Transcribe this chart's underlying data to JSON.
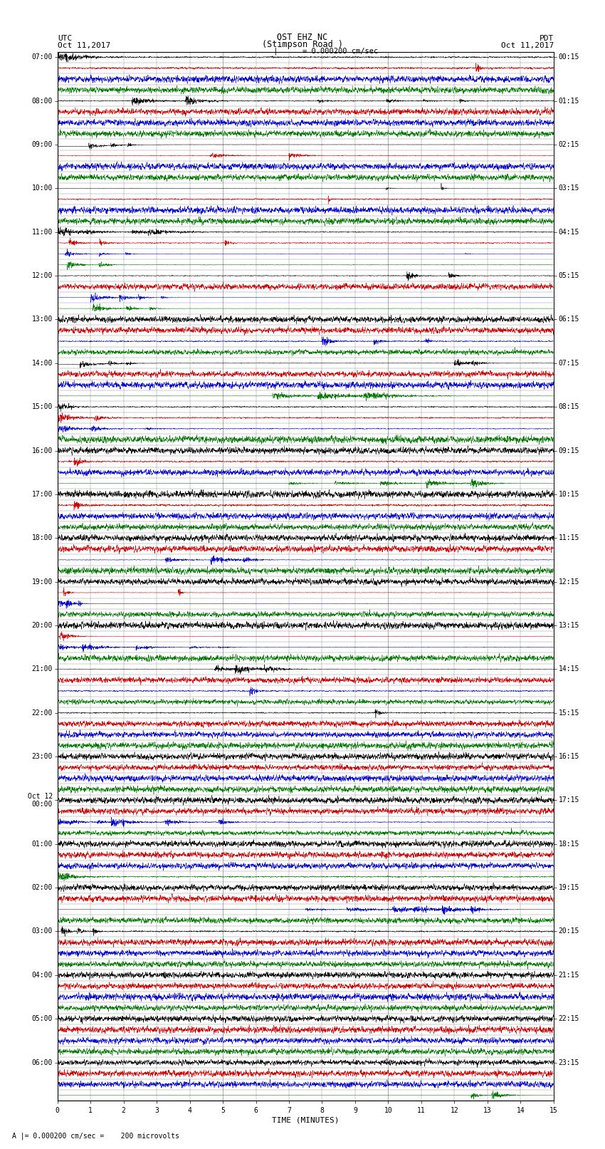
{
  "title_line1": "OST EHZ NC",
  "title_line2": "(Stimpson Road )",
  "title_line3": "I = 0.000200 cm/sec",
  "left_label_top": "UTC",
  "left_date": "Oct 11,2017",
  "right_label_top": "PDT",
  "right_date": "Oct 11,2017",
  "xlabel": "TIME (MINUTES)",
  "bottom_note": "A |= 0.000200 cm/sec =    200 microvolts",
  "utc_row_labels": [
    "07:00",
    "",
    "",
    "",
    "08:00",
    "",
    "",
    "",
    "09:00",
    "",
    "",
    "",
    "10:00",
    "",
    "",
    "",
    "11:00",
    "",
    "",
    "",
    "12:00",
    "",
    "",
    "",
    "13:00",
    "",
    "",
    "",
    "14:00",
    "",
    "",
    "",
    "15:00",
    "",
    "",
    "",
    "16:00",
    "",
    "",
    "",
    "17:00",
    "",
    "",
    "",
    "18:00",
    "",
    "",
    "",
    "19:00",
    "",
    "",
    "",
    "20:00",
    "",
    "",
    "",
    "21:00",
    "",
    "",
    "",
    "22:00",
    "",
    "",
    "",
    "23:00",
    "",
    "",
    "",
    "Oct 12\n00:00",
    "",
    "",
    "",
    "01:00",
    "",
    "",
    "",
    "02:00",
    "",
    "",
    "",
    "03:00",
    "",
    "",
    "",
    "04:00",
    "",
    "",
    "",
    "05:00",
    "",
    "",
    "",
    "06:00",
    "",
    "",
    ""
  ],
  "pdt_row_labels": [
    "00:15",
    "",
    "",
    "",
    "01:15",
    "",
    "",
    "",
    "02:15",
    "",
    "",
    "",
    "03:15",
    "",
    "",
    "",
    "04:15",
    "",
    "",
    "",
    "05:15",
    "",
    "",
    "",
    "06:15",
    "",
    "",
    "",
    "07:15",
    "",
    "",
    "",
    "08:15",
    "",
    "",
    "",
    "09:15",
    "",
    "",
    "",
    "10:15",
    "",
    "",
    "",
    "11:15",
    "",
    "",
    "",
    "12:15",
    "",
    "",
    "",
    "13:15",
    "",
    "",
    "",
    "14:15",
    "",
    "",
    "",
    "15:15",
    "",
    "",
    "",
    "16:15",
    "",
    "",
    "",
    "17:15",
    "",
    "",
    "",
    "18:15",
    "",
    "",
    "",
    "19:15",
    "",
    "",
    "",
    "20:15",
    "",
    "",
    "",
    "21:15",
    "",
    "",
    "",
    "22:15",
    "",
    "",
    "",
    "23:15",
    "",
    "",
    ""
  ],
  "num_rows": 96,
  "x_min": 0,
  "x_max": 15,
  "colors": {
    "black": "#000000",
    "red": "#cc0000",
    "blue": "#0000cc",
    "green": "#007700",
    "background": "#ffffff",
    "grid_major": "#888888",
    "grid_minor": "#cccccc"
  },
  "title_fontsize": 8.5,
  "label_fontsize": 8,
  "tick_fontsize": 7
}
